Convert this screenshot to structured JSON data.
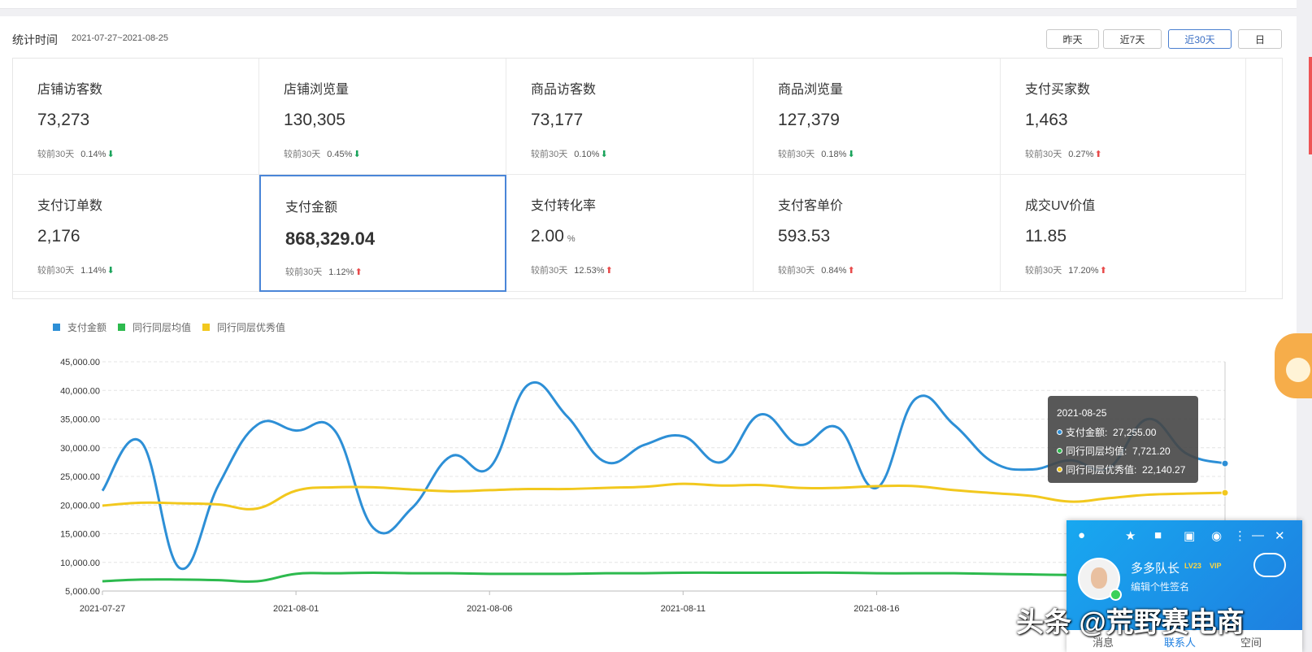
{
  "header": {
    "range_label": "统计时间",
    "range_value": "2021-07-27~2021-08-25",
    "buttons": [
      {
        "label": "昨天",
        "active": false
      },
      {
        "label": "近7天",
        "active": false
      },
      {
        "label": "近30天",
        "active": true
      },
      {
        "label": "日",
        "active": false
      }
    ]
  },
  "metrics": [
    {
      "title": "店铺访客数",
      "value": "73,273",
      "compare_label": "较前30天",
      "pct": "0.14%",
      "trend": "down"
    },
    {
      "title": "店铺浏览量",
      "value": "130,305",
      "compare_label": "较前30天",
      "pct": "0.45%",
      "trend": "down"
    },
    {
      "title": "商品访客数",
      "value": "73,177",
      "compare_label": "较前30天",
      "pct": "0.10%",
      "trend": "down"
    },
    {
      "title": "商品浏览量",
      "value": "127,379",
      "compare_label": "较前30天",
      "pct": "0.18%",
      "trend": "down"
    },
    {
      "title": "支付买家数",
      "value": "1,463",
      "compare_label": "较前30天",
      "pct": "0.27%",
      "trend": "up"
    },
    {
      "title": "支付订单数",
      "value": "2,176",
      "compare_label": "较前30天",
      "pct": "1.14%",
      "trend": "down"
    },
    {
      "title": "支付金额",
      "value": "868,329.04",
      "compare_label": "较前30天",
      "pct": "1.12%",
      "trend": "up",
      "selected": true
    },
    {
      "title": "支付转化率",
      "value": "2.00",
      "unit": "%",
      "compare_label": "较前30天",
      "pct": "12.53%",
      "trend": "up"
    },
    {
      "title": "支付客单价",
      "value": "593.53",
      "compare_label": "较前30天",
      "pct": "0.84%",
      "trend": "up"
    },
    {
      "title": "成交UV价值",
      "value": "11.85",
      "compare_label": "较前30天",
      "pct": "17.20%",
      "trend": "up"
    }
  ],
  "icons": {
    "down": "arrow-down-icon",
    "up": "arrow-up-icon"
  },
  "trend_glyphs": {
    "down": "⬇",
    "up": "⬆"
  },
  "colors": {
    "accent": "#4a86d8",
    "pay": "#2d8fd6",
    "avg": "#2dba4e",
    "top": "#f2c81e",
    "up": "#e84a4a",
    "down": "#1aa35b"
  },
  "chart_data": {
    "type": "line",
    "x": [
      "2021-07-27",
      "2021-07-28",
      "2021-07-29",
      "2021-07-30",
      "2021-07-31",
      "2021-08-01",
      "2021-08-02",
      "2021-08-03",
      "2021-08-04",
      "2021-08-05",
      "2021-08-06",
      "2021-08-07",
      "2021-08-08",
      "2021-08-09",
      "2021-08-10",
      "2021-08-11",
      "2021-08-12",
      "2021-08-13",
      "2021-08-14",
      "2021-08-15",
      "2021-08-16",
      "2021-08-17",
      "2021-08-18",
      "2021-08-19",
      "2021-08-20",
      "2021-08-21",
      "2021-08-22",
      "2021-08-23",
      "2021-08-24",
      "2021-08-25"
    ],
    "xticks": [
      "2021-07-27",
      "2021-08-01",
      "2021-08-06",
      "2021-08-11",
      "2021-08-16"
    ],
    "yticks": [
      "45,000.00",
      "40,000.00",
      "35,000.00",
      "30,000.00",
      "25,000.00",
      "20,000.00",
      "15,000.00",
      "10,000.00",
      "5,000.00"
    ],
    "ylim": [
      5000,
      45000
    ],
    "series": [
      {
        "name": "支付金额",
        "color": "#2d8fd6",
        "values": [
          22500,
          31000,
          9000,
          23500,
          34000,
          33000,
          33000,
          16000,
          19500,
          28500,
          26500,
          41000,
          35500,
          27500,
          30500,
          32000,
          27500,
          35800,
          30500,
          33500,
          23000,
          38500,
          34000,
          27500,
          26200,
          27800,
          26500,
          35000,
          29000,
          27255
        ]
      },
      {
        "name": "同行同层均值",
        "color": "#2dba4e",
        "values": [
          6700,
          7000,
          7000,
          6900,
          6700,
          8000,
          8100,
          8200,
          8100,
          8100,
          8000,
          8000,
          8000,
          8100,
          8100,
          8200,
          8200,
          8200,
          8200,
          8200,
          8100,
          8100,
          8100,
          8000,
          7900,
          7800,
          7800,
          7700,
          7700,
          7721.2
        ]
      },
      {
        "name": "同行同层优秀值",
        "color": "#f2c81e",
        "values": [
          19900,
          20400,
          20300,
          20100,
          19400,
          22500,
          23100,
          23100,
          22700,
          22400,
          22600,
          22800,
          22800,
          23000,
          23200,
          23700,
          23400,
          23500,
          23000,
          23000,
          23300,
          23300,
          22600,
          22100,
          21600,
          20600,
          21200,
          21800,
          22000,
          22140.27
        ]
      }
    ]
  },
  "tooltip": {
    "date": "2021-08-25",
    "rows": [
      {
        "label": "支付金额:",
        "value": "27,255.00",
        "color": "#2d8fd6"
      },
      {
        "label": "同行同层均值:",
        "value": "7,721.20",
        "color": "#2dba4e"
      },
      {
        "label": "同行同层优秀值:",
        "value": "22,140.27",
        "color": "#f2c81e"
      }
    ]
  },
  "qq": {
    "name": "多多队长",
    "level": "LV23",
    "vip": "VIP",
    "signature": "编辑个性签名",
    "tabs": [
      "消息",
      "联系人",
      "空间"
    ]
  },
  "watermark": "头条 @荒野赛电商"
}
